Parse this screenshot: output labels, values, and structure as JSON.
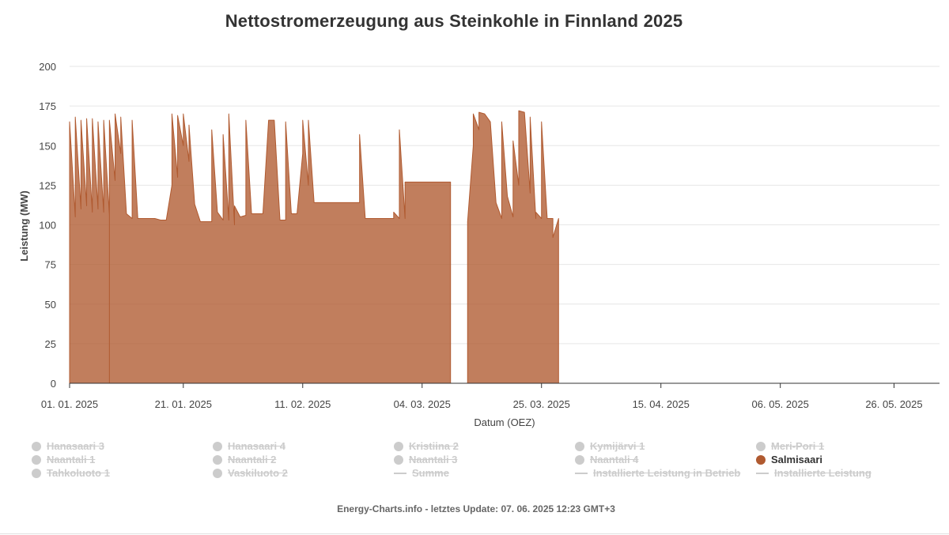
{
  "chart_data": {
    "type": "area",
    "title": "Nettostromerzeugung aus Steinkohle in Finnland 2025",
    "xlabel": "Datum (OEZ)",
    "ylabel": "Leistung (MW)",
    "ylim": [
      0,
      200
    ],
    "yticks": [
      "0",
      "25",
      "50",
      "75",
      "100",
      "125",
      "150",
      "175",
      "200"
    ],
    "xlim": [
      "2025-01-01",
      "2025-06-03"
    ],
    "xticks": [
      {
        "date": "2025-01-01",
        "label": "01. 01. 2025"
      },
      {
        "date": "2025-01-21",
        "label": "21. 01. 2025"
      },
      {
        "date": "2025-02-11",
        "label": "11. 02. 2025"
      },
      {
        "date": "2025-03-04",
        "label": "04. 03. 2025"
      },
      {
        "date": "2025-03-25",
        "label": "25. 03. 2025"
      },
      {
        "date": "2025-04-15",
        "label": "15. 04. 2025"
      },
      {
        "date": "2025-05-06",
        "label": "06. 05. 2025"
      },
      {
        "date": "2025-05-26",
        "label": "26. 05. 2025"
      }
    ],
    "grid": true,
    "legend_position": "bottom",
    "series": [
      {
        "name": "Salmisaari",
        "color": "#b05a30",
        "points": [
          [
            "2025-01-01",
            113
          ],
          [
            "2025-01-01",
            165
          ],
          [
            "2025-01-02",
            105
          ],
          [
            "2025-01-02",
            168
          ],
          [
            "2025-01-03",
            110
          ],
          [
            "2025-01-03",
            166
          ],
          [
            "2025-01-04",
            112
          ],
          [
            "2025-01-04",
            167
          ],
          [
            "2025-01-05",
            108
          ],
          [
            "2025-01-05",
            167
          ],
          [
            "2025-01-06",
            110
          ],
          [
            "2025-01-06",
            165
          ],
          [
            "2025-01-07",
            108
          ],
          [
            "2025-01-07",
            166
          ],
          [
            "2025-01-08",
            106
          ],
          [
            "2025-01-08",
            0
          ],
          [
            "2025-01-08",
            166
          ],
          [
            "2025-01-09",
            128
          ],
          [
            "2025-01-09",
            170
          ],
          [
            "2025-01-10",
            145
          ],
          [
            "2025-01-10",
            168
          ],
          [
            "2025-01-11",
            107
          ],
          [
            "2025-01-12",
            104
          ],
          [
            "2025-01-12",
            166
          ],
          [
            "2025-01-13",
            104
          ],
          [
            "2025-01-14",
            104
          ],
          [
            "2025-01-15",
            104
          ],
          [
            "2025-01-16",
            104
          ],
          [
            "2025-01-17",
            103
          ],
          [
            "2025-01-18",
            103
          ],
          [
            "2025-01-19",
            125
          ],
          [
            "2025-01-19",
            170
          ],
          [
            "2025-01-20",
            130
          ],
          [
            "2025-01-20",
            169
          ],
          [
            "2025-01-21",
            150
          ],
          [
            "2025-01-21",
            170
          ],
          [
            "2025-01-22",
            140
          ],
          [
            "2025-01-22",
            163
          ],
          [
            "2025-01-23",
            113
          ],
          [
            "2025-01-24",
            102
          ],
          [
            "2025-01-25",
            102
          ],
          [
            "2025-01-26",
            102
          ],
          [
            "2025-01-26",
            160
          ],
          [
            "2025-01-27",
            108
          ],
          [
            "2025-01-28",
            103
          ],
          [
            "2025-01-28",
            157
          ],
          [
            "2025-01-29",
            103
          ],
          [
            "2025-01-29",
            170
          ],
          [
            "2025-01-30",
            100
          ],
          [
            "2025-01-30",
            112
          ],
          [
            "2025-01-31",
            105
          ],
          [
            "2025-02-01",
            106
          ],
          [
            "2025-02-01",
            166
          ],
          [
            "2025-02-02",
            107
          ],
          [
            "2025-02-03",
            107
          ],
          [
            "2025-02-04",
            107
          ],
          [
            "2025-02-05",
            166
          ],
          [
            "2025-02-06",
            166
          ],
          [
            "2025-02-07",
            103
          ],
          [
            "2025-02-08",
            103
          ],
          [
            "2025-02-08",
            165
          ],
          [
            "2025-02-09",
            107
          ],
          [
            "2025-02-09",
            107
          ],
          [
            "2025-02-10",
            107
          ],
          [
            "2025-02-11",
            145
          ],
          [
            "2025-02-11",
            166
          ],
          [
            "2025-02-12",
            125
          ],
          [
            "2025-02-12",
            166
          ],
          [
            "2025-02-13",
            114
          ],
          [
            "2025-02-15",
            114
          ],
          [
            "2025-02-17",
            114
          ],
          [
            "2025-02-18",
            114
          ],
          [
            "2025-02-19",
            114
          ],
          [
            "2025-02-20",
            114
          ],
          [
            "2025-02-21",
            114
          ],
          [
            "2025-02-21",
            157
          ],
          [
            "2025-02-22",
            104
          ],
          [
            "2025-02-24",
            104
          ],
          [
            "2025-02-26",
            104
          ],
          [
            "2025-02-27",
            104
          ],
          [
            "2025-02-27",
            108
          ],
          [
            "2025-02-28",
            104
          ],
          [
            "2025-02-28",
            160
          ],
          [
            "2025-03-01",
            104
          ],
          [
            "2025-03-01",
            127
          ],
          [
            "2025-03-03",
            127
          ],
          [
            "2025-03-05",
            127
          ],
          [
            "2025-03-06",
            127
          ],
          [
            "2025-03-08",
            127
          ],
          [
            "2025-03-09",
            127
          ],
          [
            "2025-03-09",
            0
          ],
          [
            "2025-03-12",
            0
          ],
          [
            "2025-03-12",
            102
          ],
          [
            "2025-03-13",
            150
          ],
          [
            "2025-03-13",
            170
          ],
          [
            "2025-03-14",
            160
          ],
          [
            "2025-03-14",
            171
          ],
          [
            "2025-03-15",
            170
          ],
          [
            "2025-03-16",
            165
          ],
          [
            "2025-03-17",
            114
          ],
          [
            "2025-03-18",
            104
          ],
          [
            "2025-03-18",
            165
          ],
          [
            "2025-03-19",
            118
          ],
          [
            "2025-03-20",
            105
          ],
          [
            "2025-03-20",
            153
          ],
          [
            "2025-03-21",
            125
          ],
          [
            "2025-03-21",
            172
          ],
          [
            "2025-03-22",
            171
          ],
          [
            "2025-03-23",
            120
          ],
          [
            "2025-03-23",
            168
          ],
          [
            "2025-03-24",
            104
          ],
          [
            "2025-03-24",
            108
          ],
          [
            "2025-03-25",
            104
          ],
          [
            "2025-03-25",
            165
          ],
          [
            "2025-03-26",
            104
          ],
          [
            "2025-03-27",
            104
          ],
          [
            "2025-03-27",
            92
          ],
          [
            "2025-03-28",
            104
          ],
          [
            "2025-03-28",
            0
          ]
        ]
      }
    ]
  },
  "legend": {
    "items": [
      {
        "label": "Hanasaari 3",
        "symbol": "dot",
        "active": false
      },
      {
        "label": "Hanasaari 4",
        "symbol": "dot",
        "active": false
      },
      {
        "label": "Kristiina 2",
        "symbol": "dot",
        "active": false
      },
      {
        "label": "Kymijärvi 1",
        "symbol": "dot",
        "active": false
      },
      {
        "label": "Meri-Pori 1",
        "symbol": "dot",
        "active": false
      },
      {
        "label": "Naantali 1",
        "symbol": "dot",
        "active": false
      },
      {
        "label": "Naantali 2",
        "symbol": "dot",
        "active": false
      },
      {
        "label": "Naantali 3",
        "symbol": "dot",
        "active": false
      },
      {
        "label": "Naantali 4",
        "symbol": "dot",
        "active": false
      },
      {
        "label": "Salmisaari",
        "symbol": "dot",
        "active": true
      },
      {
        "label": "Tahkoluoto 1",
        "symbol": "dot",
        "active": false
      },
      {
        "label": "Vaskiluoto 2",
        "symbol": "dot",
        "active": false
      },
      {
        "label": "Summe",
        "symbol": "line",
        "active": false
      },
      {
        "label": "Installierte Leistung in Betrieb",
        "symbol": "line",
        "active": false
      },
      {
        "label": "Installierte Leistung",
        "symbol": "line",
        "active": false
      }
    ]
  },
  "footer": {
    "text": "Energy-Charts.info - letztes Update: 07. 06. 2025 12:23 GMT+3"
  }
}
